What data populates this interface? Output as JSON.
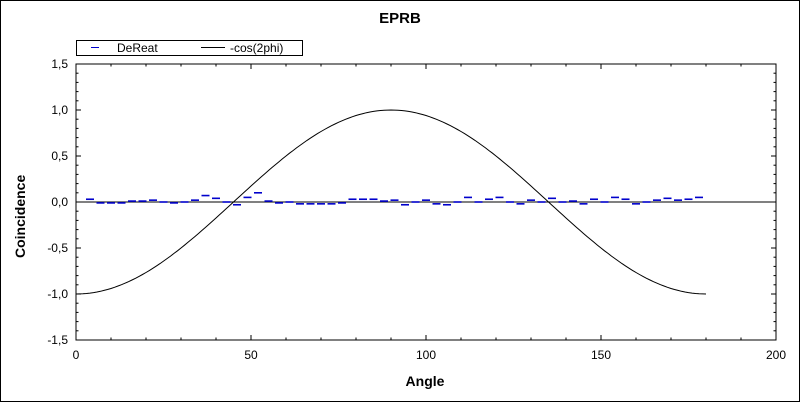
{
  "chart_data": {
    "type": "line",
    "title": "EPRB",
    "xlabel": "Angle",
    "ylabel": "Coincidence",
    "xlim": [
      0,
      200
    ],
    "ylim": [
      -1.5,
      1.5
    ],
    "xticks": [
      0,
      50,
      100,
      150,
      200
    ],
    "xtick_labels": [
      "0",
      "50",
      "100",
      "150",
      "200"
    ],
    "yticks": [
      -1.5,
      -1.0,
      -0.5,
      0.0,
      0.5,
      1.0,
      1.5
    ],
    "ytick_labels": [
      "-1,5",
      "-1,0",
      "-0,5",
      "0,0",
      "0,5",
      "1,0",
      "1,5"
    ],
    "grid": false,
    "legend_position": "top-left",
    "series": [
      {
        "name": "DeReat",
        "kind": "marker",
        "color": "#0000cc",
        "x": [
          4,
          7,
          10,
          13,
          16,
          19,
          22,
          25,
          28,
          31,
          34,
          37,
          40,
          43,
          46,
          49,
          52,
          55,
          58,
          61,
          64,
          67,
          70,
          73,
          76,
          79,
          82,
          85,
          88,
          91,
          94,
          97,
          100,
          103,
          106,
          109,
          112,
          115,
          118,
          121,
          124,
          127,
          130,
          133,
          136,
          139,
          142,
          145,
          148,
          151,
          154,
          157,
          160,
          163,
          166,
          169,
          172,
          175,
          178
        ],
        "y": [
          0.03,
          -0.01,
          -0.01,
          -0.01,
          0.01,
          0.01,
          0.02,
          0.0,
          -0.01,
          0.0,
          0.02,
          0.07,
          0.04,
          0.0,
          -0.03,
          0.05,
          0.1,
          0.01,
          -0.01,
          0.0,
          -0.02,
          -0.02,
          -0.02,
          -0.02,
          -0.01,
          0.03,
          0.03,
          0.03,
          0.01,
          0.02,
          -0.03,
          0.0,
          0.02,
          -0.02,
          -0.03,
          0.0,
          0.05,
          0.0,
          0.03,
          0.05,
          0.0,
          -0.02,
          0.02,
          0.0,
          0.04,
          0.0,
          0.01,
          -0.02,
          0.03,
          0.0,
          0.05,
          0.03,
          -0.02,
          0.0,
          0.02,
          0.04,
          0.02,
          0.03,
          0.05
        ]
      },
      {
        "name": "-cos(2phi)",
        "kind": "line",
        "color": "#000000",
        "function": "-cos(2phi)",
        "x_range": [
          0,
          180
        ]
      }
    ]
  }
}
